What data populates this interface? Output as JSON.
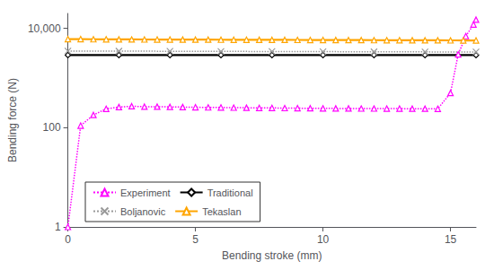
{
  "chart_data": {
    "type": "line",
    "xlabel": "Bending stroke (mm)",
    "ylabel": "Bending force (N)",
    "log": "y",
    "xlim": [
      0,
      16
    ],
    "ylim": [
      1,
      20000
    ],
    "xticks": [
      0,
      5,
      10,
      15
    ],
    "yticks": [
      1,
      100,
      {
        "value": 10000,
        "label": "10,000"
      }
    ],
    "grid": false,
    "legend": "lower left",
    "series": [
      {
        "name": "Experiment",
        "color": "#FF00FF",
        "line_style": "dotted",
        "marker": "triangle",
        "x": [
          0,
          0.5,
          1.0,
          1.5,
          2.0,
          2.5,
          3.0,
          3.5,
          4.0,
          4.5,
          5.0,
          5.5,
          6.0,
          6.5,
          7.0,
          7.5,
          8.0,
          8.5,
          9.0,
          9.5,
          10.0,
          10.5,
          11.0,
          11.5,
          12.0,
          12.5,
          13.0,
          13.5,
          14.0,
          14.5,
          15.0,
          15.3,
          15.6,
          15.9,
          16.0
        ],
        "values": [
          1,
          110,
          180,
          240,
          260,
          270,
          265,
          265,
          262,
          260,
          258,
          256,
          255,
          253,
          252,
          250,
          250,
          248,
          247,
          246,
          245,
          244,
          244,
          243,
          243,
          242,
          242,
          241,
          241,
          240,
          500,
          3000,
          7000,
          12000,
          15000
        ]
      },
      {
        "name": "Traditional",
        "color": "#000000",
        "line_style": "solid",
        "marker": "diamond",
        "x": [
          0,
          2,
          4,
          6,
          8,
          10,
          12,
          14,
          16
        ],
        "values": [
          2900,
          2900,
          2900,
          2900,
          2900,
          2900,
          2900,
          2900,
          2900
        ]
      },
      {
        "name": "Boljanovic",
        "color": "#999999",
        "line_style": "dotted",
        "marker": "x",
        "x": [
          0,
          2,
          4,
          6,
          8,
          10,
          12,
          14,
          16
        ],
        "values": [
          3500,
          3480,
          3460,
          3440,
          3420,
          3400,
          3380,
          3360,
          3350
        ]
      },
      {
        "name": "Tekaslan",
        "color": "#FFA500",
        "line_style": "solid",
        "marker": "triangle",
        "x": [
          0,
          0.5,
          1.0,
          1.5,
          2.0,
          2.5,
          3.0,
          3.5,
          4.0,
          4.5,
          5.0,
          5.5,
          6.0,
          6.5,
          7.0,
          7.5,
          8.0,
          8.5,
          9.0,
          9.5,
          10.0,
          10.5,
          11.0,
          11.5,
          12.0,
          12.5,
          13.0,
          13.5,
          14.0,
          14.5,
          15.0,
          15.5,
          16.0
        ],
        "values": [
          6100,
          6100,
          6050,
          6030,
          6010,
          5990,
          5980,
          5970,
          5960,
          5950,
          5940,
          5930,
          5920,
          5910,
          5900,
          5890,
          5880,
          5870,
          5860,
          5850,
          5840,
          5830,
          5820,
          5810,
          5800,
          5790,
          5780,
          5770,
          5760,
          5750,
          5740,
          5730,
          5720
        ]
      }
    ]
  }
}
